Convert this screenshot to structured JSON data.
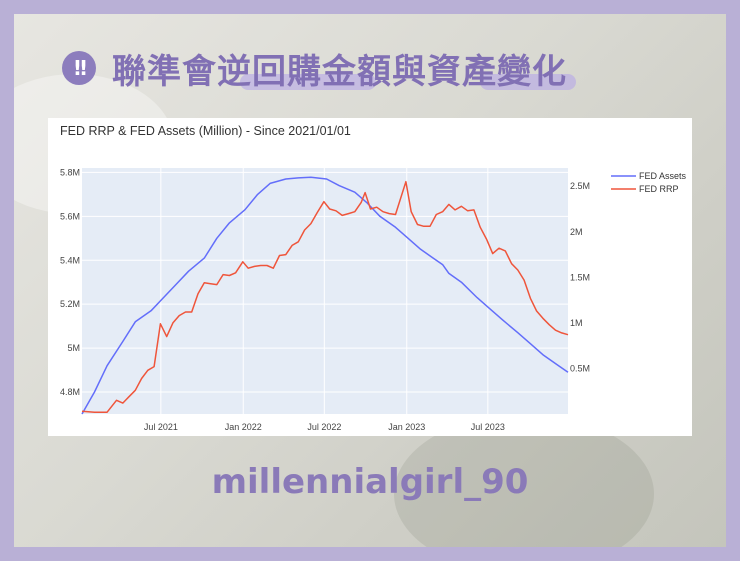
{
  "page": {
    "title": "聯準會逆回購金額與資產變化",
    "badge": "!!",
    "footer": "millennialgirl_90"
  },
  "colors": {
    "accent": "#8170b4",
    "fed_assets": "#636efa",
    "fed_rrp": "#ef553b"
  },
  "chart_data": {
    "type": "line",
    "title": "FED RRP & FED Assets (Million) - Since 2021/01/01",
    "xlabel": "",
    "ylabel": "",
    "x_ticks": [
      "Jul 2021",
      "Jan 2022",
      "Jul 2022",
      "Jan 2023",
      "Jul 2023"
    ],
    "y_left_ticks": [
      "4.8M",
      "5M",
      "5.2M",
      "5.4M",
      "5.6M",
      "5.8M"
    ],
    "y_right_ticks": [
      "0.5M",
      "1M",
      "1.5M",
      "2M",
      "2.5M"
    ],
    "y_left_range": [
      4.7,
      5.82
    ],
    "y_right_range": [
      0,
      2.7
    ],
    "grid": true,
    "legend_position": "top-right",
    "series": [
      {
        "name": "FED Assets",
        "axis": "left",
        "points": [
          [
            "2021-01-06",
            4.7
          ],
          [
            "2021-02-03",
            4.8
          ],
          [
            "2021-03-03",
            4.92
          ],
          [
            "2021-04-07",
            5.03
          ],
          [
            "2021-05-05",
            5.12
          ],
          [
            "2021-06-09",
            5.17
          ],
          [
            "2021-07-07",
            5.23
          ],
          [
            "2021-08-04",
            5.29
          ],
          [
            "2021-09-01",
            5.35
          ],
          [
            "2021-10-06",
            5.41
          ],
          [
            "2021-11-03",
            5.5
          ],
          [
            "2021-12-01",
            5.57
          ],
          [
            "2022-01-05",
            5.63
          ],
          [
            "2022-02-02",
            5.7
          ],
          [
            "2022-03-02",
            5.75
          ],
          [
            "2022-04-06",
            5.77
          ],
          [
            "2022-05-04",
            5.775
          ],
          [
            "2022-06-01",
            5.778
          ],
          [
            "2022-07-06",
            5.77
          ],
          [
            "2022-08-03",
            5.74
          ],
          [
            "2022-09-07",
            5.71
          ],
          [
            "2022-10-05",
            5.66
          ],
          [
            "2022-11-02",
            5.6
          ],
          [
            "2022-12-07",
            5.55
          ],
          [
            "2023-01-04",
            5.5
          ],
          [
            "2023-02-01",
            5.45
          ],
          [
            "2023-03-01",
            5.41
          ],
          [
            "2023-03-22",
            5.38
          ],
          [
            "2023-04-05",
            5.34
          ],
          [
            "2023-05-03",
            5.3
          ],
          [
            "2023-06-07",
            5.23
          ],
          [
            "2023-07-05",
            5.18
          ],
          [
            "2023-08-02",
            5.13
          ],
          [
            "2023-09-06",
            5.07
          ],
          [
            "2023-10-04",
            5.02
          ],
          [
            "2023-11-01",
            4.97
          ],
          [
            "2023-12-06",
            4.92
          ],
          [
            "2023-12-27",
            4.89
          ]
        ]
      },
      {
        "name": "FED RRP",
        "axis": "right",
        "points": [
          [
            "2021-01-06",
            0.03
          ],
          [
            "2021-02-03",
            0.02
          ],
          [
            "2021-03-03",
            0.02
          ],
          [
            "2021-03-24",
            0.15
          ],
          [
            "2021-04-07",
            0.12
          ],
          [
            "2021-04-21",
            0.19
          ],
          [
            "2021-05-05",
            0.26
          ],
          [
            "2021-05-19",
            0.39
          ],
          [
            "2021-06-02",
            0.48
          ],
          [
            "2021-06-16",
            0.52
          ],
          [
            "2021-06-30",
            0.99
          ],
          [
            "2021-07-14",
            0.85
          ],
          [
            "2021-07-28",
            1.0
          ],
          [
            "2021-08-11",
            1.08
          ],
          [
            "2021-08-25",
            1.12
          ],
          [
            "2021-09-08",
            1.12
          ],
          [
            "2021-09-22",
            1.32
          ],
          [
            "2021-10-06",
            1.44
          ],
          [
            "2021-10-20",
            1.43
          ],
          [
            "2021-11-03",
            1.42
          ],
          [
            "2021-11-17",
            1.53
          ],
          [
            "2021-12-01",
            1.52
          ],
          [
            "2021-12-15",
            1.55
          ],
          [
            "2021-12-31",
            1.67
          ],
          [
            "2022-01-12",
            1.6
          ],
          [
            "2022-01-26",
            1.62
          ],
          [
            "2022-02-09",
            1.63
          ],
          [
            "2022-02-23",
            1.63
          ],
          [
            "2022-03-09",
            1.6
          ],
          [
            "2022-03-23",
            1.74
          ],
          [
            "2022-04-06",
            1.75
          ],
          [
            "2022-04-20",
            1.85
          ],
          [
            "2022-05-04",
            1.89
          ],
          [
            "2022-05-18",
            2.02
          ],
          [
            "2022-06-01",
            2.09
          ],
          [
            "2022-06-15",
            2.21
          ],
          [
            "2022-06-30",
            2.33
          ],
          [
            "2022-07-13",
            2.25
          ],
          [
            "2022-07-27",
            2.23
          ],
          [
            "2022-08-10",
            2.18
          ],
          [
            "2022-08-24",
            2.2
          ],
          [
            "2022-09-07",
            2.22
          ],
          [
            "2022-09-21",
            2.32
          ],
          [
            "2022-09-30",
            2.43
          ],
          [
            "2022-10-12",
            2.25
          ],
          [
            "2022-10-26",
            2.27
          ],
          [
            "2022-11-09",
            2.22
          ],
          [
            "2022-11-23",
            2.2
          ],
          [
            "2022-12-07",
            2.19
          ],
          [
            "2022-12-30",
            2.55
          ],
          [
            "2023-01-11",
            2.22
          ],
          [
            "2023-01-25",
            2.08
          ],
          [
            "2023-02-08",
            2.06
          ],
          [
            "2023-02-22",
            2.06
          ],
          [
            "2023-03-08",
            2.19
          ],
          [
            "2023-03-22",
            2.22
          ],
          [
            "2023-04-05",
            2.3
          ],
          [
            "2023-04-19",
            2.24
          ],
          [
            "2023-05-03",
            2.28
          ],
          [
            "2023-05-17",
            2.23
          ],
          [
            "2023-05-31",
            2.24
          ],
          [
            "2023-06-14",
            2.05
          ],
          [
            "2023-06-28",
            1.92
          ],
          [
            "2023-07-12",
            1.76
          ],
          [
            "2023-07-26",
            1.82
          ],
          [
            "2023-08-09",
            1.79
          ],
          [
            "2023-08-23",
            1.65
          ],
          [
            "2023-09-06",
            1.58
          ],
          [
            "2023-09-20",
            1.47
          ],
          [
            "2023-10-04",
            1.27
          ],
          [
            "2023-10-18",
            1.13
          ],
          [
            "2023-11-01",
            1.05
          ],
          [
            "2023-11-15",
            0.98
          ],
          [
            "2023-11-29",
            0.92
          ],
          [
            "2023-12-13",
            0.89
          ],
          [
            "2023-12-27",
            0.87
          ]
        ]
      }
    ]
  }
}
